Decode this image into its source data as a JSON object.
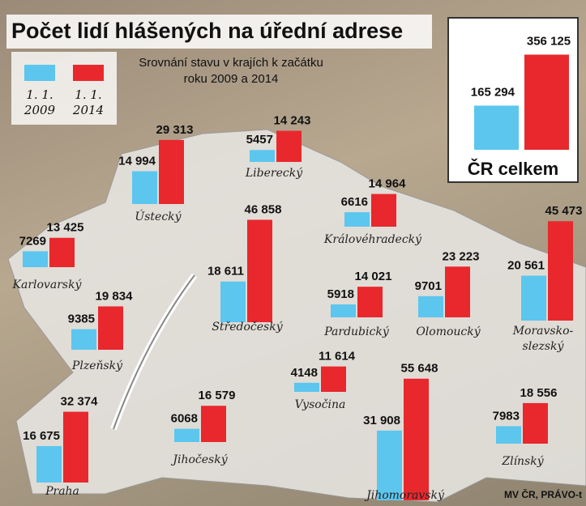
{
  "chart_data": {
    "type": "bar",
    "title": "Počet lidí hlášených na úřední adrese",
    "subtitle": "Srovnání stavu v krajích k začátku roku 2009 a 2014",
    "source": "MV ČR, PRÁVO-t",
    "categories": [
      "Ústecký",
      "Liberecký",
      "Karlovarský",
      "Královéhradecký",
      "Středočeský",
      "Plzeňský",
      "Pardubický",
      "Olomoucký",
      "Moravsko-slezský",
      "Vysočina",
      "Jihočeský",
      "Praha",
      "Jihomoravský",
      "Zlínský"
    ],
    "series": [
      {
        "name": "1. 1. 2009",
        "color": "#5cc6ee",
        "values": [
          14994,
          5457,
          7269,
          6616,
          18611,
          9385,
          5918,
          9701,
          20561,
          4148,
          6068,
          16675,
          31908,
          7983
        ],
        "value_labels": [
          "14 994",
          "5457",
          "7269",
          "6616",
          "18 611",
          "9385",
          "5918",
          "9701",
          "20 561",
          "4148",
          "6068",
          "16 675",
          "31 908",
          "7983"
        ]
      },
      {
        "name": "1. 1. 2014",
        "color": "#e8282d",
        "values": [
          29313,
          14243,
          13425,
          14964,
          46858,
          19834,
          14021,
          23223,
          45473,
          11614,
          16579,
          32374,
          55648,
          18556
        ],
        "value_labels": [
          "29 313",
          "14 243",
          "13 425",
          "14 964",
          "46 858",
          "19 834",
          "14 021",
          "23 223",
          "45 473",
          "11 614",
          "16 579",
          "32 374",
          "55 648",
          "18 556"
        ]
      }
    ],
    "total": {
      "label": "ČR celkem",
      "values": [
        165294,
        356125
      ],
      "value_labels": [
        "165 294",
        "356 125"
      ]
    }
  }
}
